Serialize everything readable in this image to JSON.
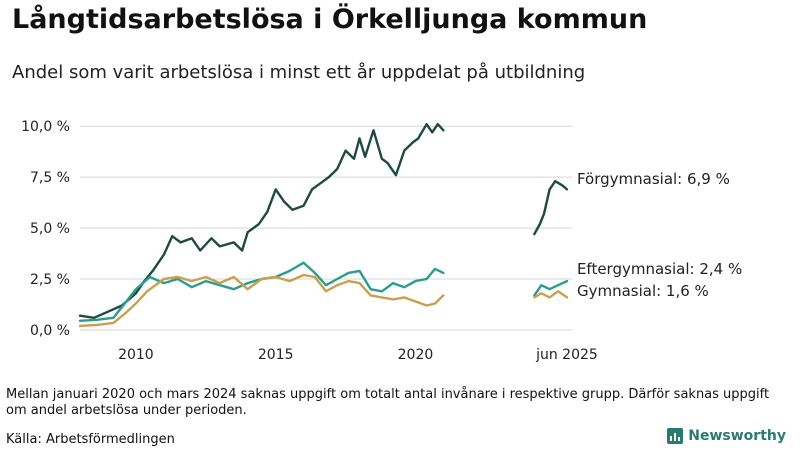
{
  "title": "Långtidsarbetslösa i Örkelljunga kommun",
  "subtitle": "Andel som varit arbetslösa i minst ett år uppdelat på utbildning",
  "note": "Mellan januari 2020 och mars 2024 saknas uppgift om totalt antal invånare i respektive grupp. Därför saknas uppgift om andel arbetslösa under perioden.",
  "source": "Källa: Arbetsförmedlingen",
  "brand": "Newsworthy",
  "colors": {
    "forgymnasial": "#1e4a40",
    "eftergymnasial": "#2a9d8f",
    "gymnasial": "#c9a050",
    "brand": "#2a7a6e"
  },
  "chart_data": {
    "type": "line",
    "y_unit": "%",
    "ylim": [
      0,
      10.5
    ],
    "xlim": [
      2008.0,
      2025.6
    ],
    "x_ticks": [
      {
        "value": 2010,
        "label": "2010"
      },
      {
        "value": 2015,
        "label": "2015"
      },
      {
        "value": 2020,
        "label": "2020"
      },
      {
        "value": 2025.42,
        "label": "jun 2025"
      }
    ],
    "y_ticks": [
      {
        "value": 0,
        "label": "0,0 %"
      },
      {
        "value": 2.5,
        "label": "2,5 %"
      },
      {
        "value": 5,
        "label": "5,0 %"
      },
      {
        "value": 7.5,
        "label": "7,5 %"
      },
      {
        "value": 10,
        "label": "10,0 %"
      }
    ],
    "series": [
      {
        "name": "Förgymnasial",
        "label": "Förgymnasial: 6,9 %",
        "color": "#1e4a40",
        "segments": [
          [
            [
              2008.0,
              0.7
            ],
            [
              2008.5,
              0.6
            ],
            [
              2009.0,
              0.9
            ],
            [
              2009.5,
              1.2
            ],
            [
              2010.0,
              1.8
            ],
            [
              2010.3,
              2.4
            ],
            [
              2010.6,
              2.9
            ],
            [
              2011.0,
              3.7
            ],
            [
              2011.3,
              4.6
            ],
            [
              2011.6,
              4.3
            ],
            [
              2012.0,
              4.5
            ],
            [
              2012.3,
              3.9
            ],
            [
              2012.7,
              4.5
            ],
            [
              2013.0,
              4.1
            ],
            [
              2013.5,
              4.3
            ],
            [
              2013.8,
              3.9
            ],
            [
              2014.0,
              4.8
            ],
            [
              2014.4,
              5.2
            ],
            [
              2014.7,
              5.8
            ],
            [
              2015.0,
              6.9
            ],
            [
              2015.3,
              6.3
            ],
            [
              2015.6,
              5.9
            ],
            [
              2016.0,
              6.1
            ],
            [
              2016.3,
              6.9
            ],
            [
              2016.6,
              7.2
            ],
            [
              2016.9,
              7.5
            ],
            [
              2017.2,
              7.9
            ],
            [
              2017.5,
              8.8
            ],
            [
              2017.8,
              8.4
            ],
            [
              2018.0,
              9.4
            ],
            [
              2018.2,
              8.5
            ],
            [
              2018.5,
              9.8
            ],
            [
              2018.8,
              8.4
            ],
            [
              2019.0,
              8.2
            ],
            [
              2019.3,
              7.6
            ],
            [
              2019.6,
              8.8
            ],
            [
              2019.9,
              9.2
            ],
            [
              2020.1,
              9.4
            ],
            [
              2020.4,
              10.1
            ],
            [
              2020.6,
              9.7
            ],
            [
              2020.8,
              10.1
            ],
            [
              2021.0,
              9.8
            ]
          ],
          [
            [
              2024.25,
              4.7
            ],
            [
              2024.45,
              5.2
            ],
            [
              2024.6,
              5.7
            ],
            [
              2024.8,
              6.9
            ],
            [
              2025.0,
              7.3
            ],
            [
              2025.25,
              7.1
            ],
            [
              2025.42,
              6.9
            ]
          ]
        ]
      },
      {
        "name": "Eftergymnasial",
        "label": "Eftergymnasial: 2,4 %",
        "color": "#2a9d8f",
        "segments": [
          [
            [
              2008.0,
              0.45
            ],
            [
              2008.6,
              0.5
            ],
            [
              2009.2,
              0.6
            ],
            [
              2009.6,
              1.3
            ],
            [
              2010.0,
              2.0
            ],
            [
              2010.5,
              2.6
            ],
            [
              2011.0,
              2.3
            ],
            [
              2011.5,
              2.5
            ],
            [
              2012.0,
              2.1
            ],
            [
              2012.5,
              2.4
            ],
            [
              2013.0,
              2.2
            ],
            [
              2013.5,
              2.0
            ],
            [
              2014.0,
              2.3
            ],
            [
              2014.5,
              2.5
            ],
            [
              2015.0,
              2.6
            ],
            [
              2015.5,
              2.9
            ],
            [
              2016.0,
              3.3
            ],
            [
              2016.4,
              2.8
            ],
            [
              2016.8,
              2.2
            ],
            [
              2017.2,
              2.5
            ],
            [
              2017.6,
              2.8
            ],
            [
              2018.0,
              2.9
            ],
            [
              2018.4,
              2.0
            ],
            [
              2018.8,
              1.9
            ],
            [
              2019.2,
              2.3
            ],
            [
              2019.6,
              2.1
            ],
            [
              2020.0,
              2.4
            ],
            [
              2020.4,
              2.5
            ],
            [
              2020.7,
              3.0
            ],
            [
              2021.0,
              2.8
            ]
          ],
          [
            [
              2024.25,
              1.7
            ],
            [
              2024.5,
              2.2
            ],
            [
              2024.8,
              2.0
            ],
            [
              2025.1,
              2.2
            ],
            [
              2025.42,
              2.4
            ]
          ]
        ]
      },
      {
        "name": "Gymnasial",
        "label": "Gymnasial: 1,6 %",
        "color": "#c9a050",
        "segments": [
          [
            [
              2008.0,
              0.2
            ],
            [
              2008.6,
              0.25
            ],
            [
              2009.2,
              0.35
            ],
            [
              2009.6,
              0.8
            ],
            [
              2010.0,
              1.3
            ],
            [
              2010.4,
              1.9
            ],
            [
              2011.0,
              2.5
            ],
            [
              2011.5,
              2.6
            ],
            [
              2012.0,
              2.4
            ],
            [
              2012.5,
              2.6
            ],
            [
              2013.0,
              2.3
            ],
            [
              2013.5,
              2.6
            ],
            [
              2014.0,
              2.0
            ],
            [
              2014.5,
              2.5
            ],
            [
              2015.0,
              2.6
            ],
            [
              2015.5,
              2.4
            ],
            [
              2016.0,
              2.7
            ],
            [
              2016.4,
              2.6
            ],
            [
              2016.8,
              1.9
            ],
            [
              2017.2,
              2.2
            ],
            [
              2017.6,
              2.4
            ],
            [
              2018.0,
              2.3
            ],
            [
              2018.4,
              1.7
            ],
            [
              2018.8,
              1.6
            ],
            [
              2019.2,
              1.5
            ],
            [
              2019.6,
              1.6
            ],
            [
              2020.0,
              1.4
            ],
            [
              2020.4,
              1.2
            ],
            [
              2020.7,
              1.3
            ],
            [
              2021.0,
              1.7
            ]
          ],
          [
            [
              2024.25,
              1.6
            ],
            [
              2024.5,
              1.8
            ],
            [
              2024.8,
              1.6
            ],
            [
              2025.1,
              1.9
            ],
            [
              2025.42,
              1.6
            ]
          ]
        ]
      }
    ]
  }
}
